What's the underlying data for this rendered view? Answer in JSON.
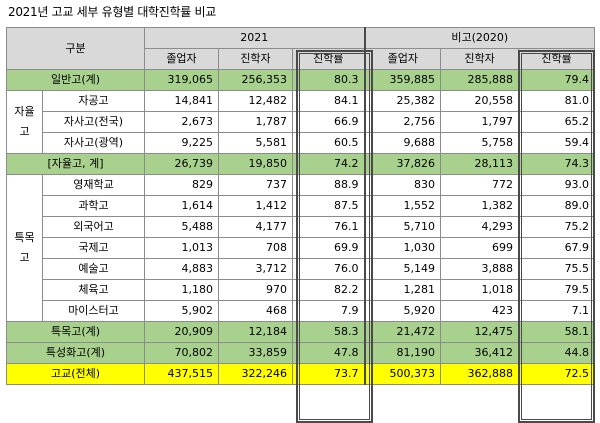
{
  "title": "2021년 고교 세부 유형별 대학진학률 비교",
  "header": {
    "category": "구분",
    "year_2021": "2021",
    "year_2020": "비고(2020)",
    "columns": [
      "졸업자",
      "진학자",
      "진학률",
      "졸업자",
      "진학자",
      "진학률"
    ]
  },
  "groups": {
    "jayul": "자율고",
    "teukmok": "특목고"
  },
  "rows": [
    {
      "label": "일반고(계)",
      "v": [
        "319,065",
        "256,353",
        "80.3",
        "359,885",
        "285,888",
        "79.4"
      ]
    },
    {
      "label": "자공고",
      "v": [
        "14,841",
        "12,482",
        "84.1",
        "25,382",
        "20,558",
        "81.0"
      ]
    },
    {
      "label": "자사고(전국)",
      "v": [
        "2,673",
        "1,787",
        "66.9",
        "2,756",
        "1,797",
        "65.2"
      ]
    },
    {
      "label": "자사고(광역)",
      "v": [
        "9,225",
        "5,581",
        "60.5",
        "9,688",
        "5,758",
        "59.4"
      ]
    },
    {
      "label": "[자율고, 계]",
      "v": [
        "26,739",
        "19,850",
        "74.2",
        "37,826",
        "28,113",
        "74.3"
      ]
    },
    {
      "label": "영재학교",
      "v": [
        "829",
        "737",
        "88.9",
        "830",
        "772",
        "93.0"
      ]
    },
    {
      "label": "과학고",
      "v": [
        "1,614",
        "1,412",
        "87.5",
        "1,552",
        "1,382",
        "89.0"
      ]
    },
    {
      "label": "외국어고",
      "v": [
        "5,488",
        "4,177",
        "76.1",
        "5,710",
        "4,293",
        "75.2"
      ]
    },
    {
      "label": "국제고",
      "v": [
        "1,013",
        "708",
        "69.9",
        "1,030",
        "699",
        "67.9"
      ]
    },
    {
      "label": "예술고",
      "v": [
        "4,883",
        "3,712",
        "76.0",
        "5,149",
        "3,888",
        "75.5"
      ]
    },
    {
      "label": "체육고",
      "v": [
        "1,180",
        "970",
        "82.2",
        "1,281",
        "1,018",
        "79.5"
      ]
    },
    {
      "label": "마이스터고",
      "v": [
        "5,902",
        "468",
        "7.9",
        "5,920",
        "423",
        "7.1"
      ]
    },
    {
      "label": "특목고(계)",
      "v": [
        "20,909",
        "12,184",
        "58.3",
        "21,472",
        "12,475",
        "58.1"
      ]
    },
    {
      "label": "특성화고(계)",
      "v": [
        "70,802",
        "33,859",
        "47.8",
        "81,190",
        "36,412",
        "44.8"
      ]
    },
    {
      "label": "고교(전체)",
      "v": [
        "437,515",
        "322,246",
        "73.7",
        "500,373",
        "362,888",
        "72.5"
      ]
    }
  ],
  "colors": {
    "header_bg": "#d9d9d9",
    "subtotal_bg": "#a9d18e",
    "total_bg": "#ffff00",
    "border": "#8c8c8c"
  }
}
